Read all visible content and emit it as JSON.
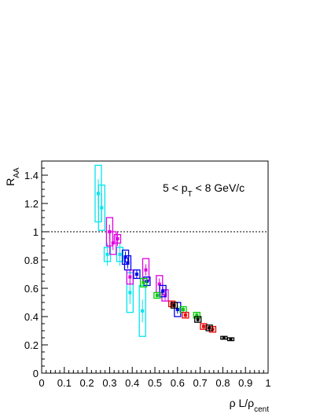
{
  "chart_data": {
    "type": "scatter",
    "annotation": "5 < p_T < 8 GeV/c",
    "xlabel": "ρ L/ρ_cent",
    "ylabel": "R_AA",
    "xlim": [
      0,
      1
    ],
    "ylim": [
      0,
      1.5
    ],
    "x_ticks": [
      "0",
      "0.1",
      "0.2",
      "0.3",
      "0.4",
      "0.5",
      "0.6",
      "0.7",
      "0.8",
      "0.9",
      "1"
    ],
    "y_ticks": [
      "0",
      "0.2",
      "0.4",
      "0.6",
      "0.8",
      "1",
      "1.2",
      "1.4"
    ],
    "reference_line_y": 1,
    "colors": {
      "cyan": "#00e5ee",
      "magenta": "#e000e0",
      "blue": "#0000ee",
      "green": "#00cc00",
      "red": "#ee0000",
      "black": "#000000"
    },
    "series": [
      {
        "color": "cyan",
        "points": [
          {
            "x": 0.25,
            "y": 1.27,
            "stat": 0.1,
            "syst": 0.2
          },
          {
            "x": 0.265,
            "y": 1.17,
            "stat": 0.1,
            "syst": 0.16
          },
          {
            "x": 0.29,
            "y": 0.84,
            "stat": 0.08,
            "syst": 0.05
          },
          {
            "x": 0.345,
            "y": 0.84,
            "stat": 0.08,
            "syst": 0.05
          },
          {
            "x": 0.39,
            "y": 0.57,
            "stat": 0.08,
            "syst": 0.14
          },
          {
            "x": 0.445,
            "y": 0.44,
            "stat": 0.08,
            "syst": 0.18
          }
        ]
      },
      {
        "color": "magenta",
        "points": [
          {
            "x": 0.3,
            "y": 1.0,
            "stat": 0.05,
            "syst": 0.1
          },
          {
            "x": 0.315,
            "y": 0.92,
            "stat": 0.05,
            "syst": 0.08
          },
          {
            "x": 0.335,
            "y": 0.95,
            "stat": 0.05,
            "syst": 0.03
          },
          {
            "x": 0.39,
            "y": 0.68,
            "stat": 0.05,
            "syst": 0.05
          },
          {
            "x": 0.46,
            "y": 0.73,
            "stat": 0.04,
            "syst": 0.08
          },
          {
            "x": 0.52,
            "y": 0.63,
            "stat": 0.04,
            "syst": 0.06
          },
          {
            "x": 0.545,
            "y": 0.55,
            "stat": 0.04,
            "syst": 0.04
          }
        ]
      },
      {
        "color": "blue",
        "points": [
          {
            "x": 0.37,
            "y": 0.82,
            "stat": 0.04,
            "syst": 0.05
          },
          {
            "x": 0.38,
            "y": 0.78,
            "stat": 0.04,
            "syst": 0.05
          },
          {
            "x": 0.42,
            "y": 0.7,
            "stat": 0.03,
            "syst": 0.03
          },
          {
            "x": 0.465,
            "y": 0.65,
            "stat": 0.03,
            "syst": 0.03
          },
          {
            "x": 0.535,
            "y": 0.58,
            "stat": 0.03,
            "syst": 0.04
          },
          {
            "x": 0.6,
            "y": 0.45,
            "stat": 0.03,
            "syst": 0.05
          }
        ]
      },
      {
        "color": "green",
        "points": [
          {
            "x": 0.45,
            "y": 0.64,
            "stat": 0.03,
            "syst": 0.03
          },
          {
            "x": 0.51,
            "y": 0.55,
            "stat": 0.02,
            "syst": 0.02
          },
          {
            "x": 0.625,
            "y": 0.45,
            "stat": 0.02,
            "syst": 0.02
          },
          {
            "x": 0.685,
            "y": 0.41,
            "stat": 0.02,
            "syst": 0.02
          }
        ]
      },
      {
        "color": "red",
        "points": [
          {
            "x": 0.575,
            "y": 0.49,
            "stat": 0.02,
            "syst": 0.02
          },
          {
            "x": 0.635,
            "y": 0.41,
            "stat": 0.02,
            "syst": 0.02
          },
          {
            "x": 0.715,
            "y": 0.33,
            "stat": 0.02,
            "syst": 0.02
          },
          {
            "x": 0.755,
            "y": 0.31,
            "stat": 0.02,
            "syst": 0.02
          }
        ]
      },
      {
        "color": "black",
        "points": [
          {
            "x": 0.585,
            "y": 0.48,
            "stat": 0.02,
            "syst": 0.02
          },
          {
            "x": 0.69,
            "y": 0.38,
            "stat": 0.02,
            "syst": 0.02
          },
          {
            "x": 0.74,
            "y": 0.32,
            "stat": 0.02,
            "syst": 0.02
          },
          {
            "x": 0.805,
            "y": 0.25,
            "stat": 0.01,
            "syst": 0.01
          },
          {
            "x": 0.835,
            "y": 0.24,
            "stat": 0.01,
            "syst": 0.01
          }
        ]
      }
    ]
  }
}
